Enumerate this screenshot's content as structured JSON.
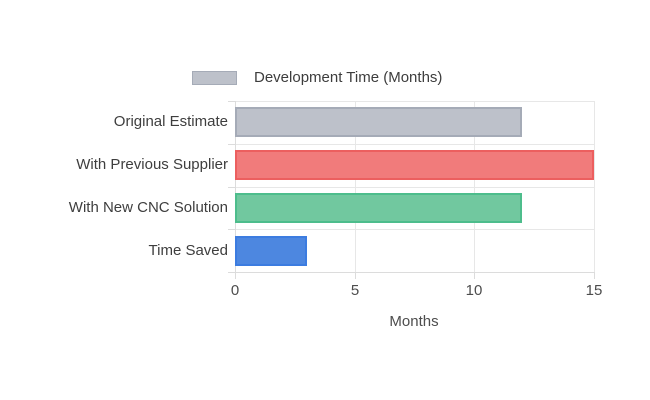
{
  "legend": {
    "label": "Development Time (Months)",
    "swatch_fill": "#bdc1ca",
    "swatch_border": "#a5abb7"
  },
  "chart_data": {
    "type": "bar",
    "orientation": "horizontal",
    "title": "",
    "categories": [
      "Original Estimate",
      "With Previous Supplier",
      "With New CNC Solution",
      "Time Saved"
    ],
    "series": [
      {
        "name": "Development Time (Months)",
        "values": [
          12,
          15,
          12,
          3
        ]
      }
    ],
    "xlabel": "Months",
    "ylabel": "",
    "xlim": [
      0,
      15
    ],
    "xticks": [
      0,
      5,
      10,
      15
    ],
    "grid": true,
    "legend_position": "top",
    "bar_colors": [
      {
        "fill": "#bdc1ca",
        "border": "#a5abb7"
      },
      {
        "fill": "#f17b7b",
        "border": "#ec5f5f"
      },
      {
        "fill": "#71c89f",
        "border": "#4dbd8c"
      },
      {
        "fill": "#4d87e0",
        "border": "#3c7ce0"
      }
    ]
  }
}
